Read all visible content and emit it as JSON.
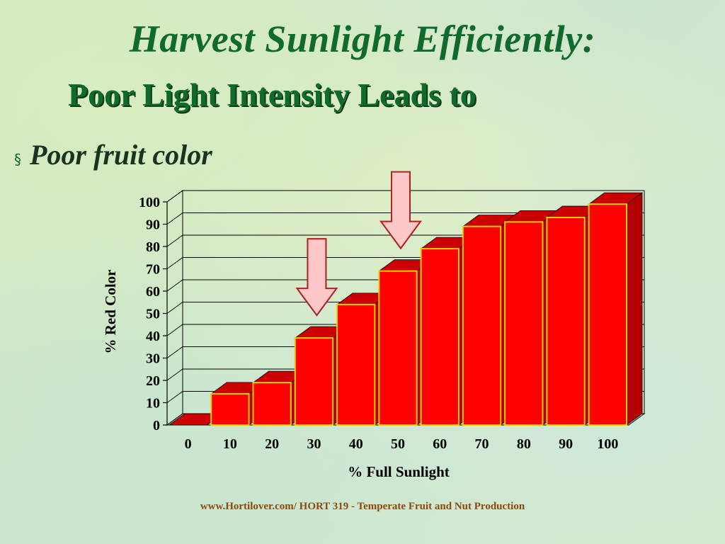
{
  "slide": {
    "title": "Harvest Sunlight Efficiently:",
    "subtitle": "Poor Light Intensity Leads to",
    "bullet_icon": "square-bullet-icon",
    "bullet": "Poor fruit color",
    "footer": "www.Hortilover.com/  HORT 319 - Temperate Fruit and Nut Production"
  },
  "chart_data": {
    "type": "bar",
    "categories": [
      "0",
      "10",
      "20",
      "30",
      "40",
      "50",
      "60",
      "70",
      "80",
      "90",
      "100"
    ],
    "values": [
      0,
      14,
      19,
      39,
      54,
      69,
      79,
      89,
      91,
      93,
      99
    ],
    "xlabel": "% Full Sunlight",
    "ylabel": "% Red Color",
    "ylim": [
      0,
      100
    ],
    "yticks": [
      0,
      10,
      20,
      30,
      40,
      50,
      60,
      70,
      80,
      90,
      100
    ],
    "grid": true,
    "bar_color": "#ff0000",
    "bar_side_color": "#b30000",
    "bar_top_color": "#cc0000",
    "bar_edge_color": "#e8d000",
    "annotations": [
      {
        "type": "arrow-down",
        "category": "30",
        "color": "#ffc8c8"
      },
      {
        "type": "arrow-down",
        "category": "50",
        "color": "#ffc8c8"
      }
    ]
  }
}
